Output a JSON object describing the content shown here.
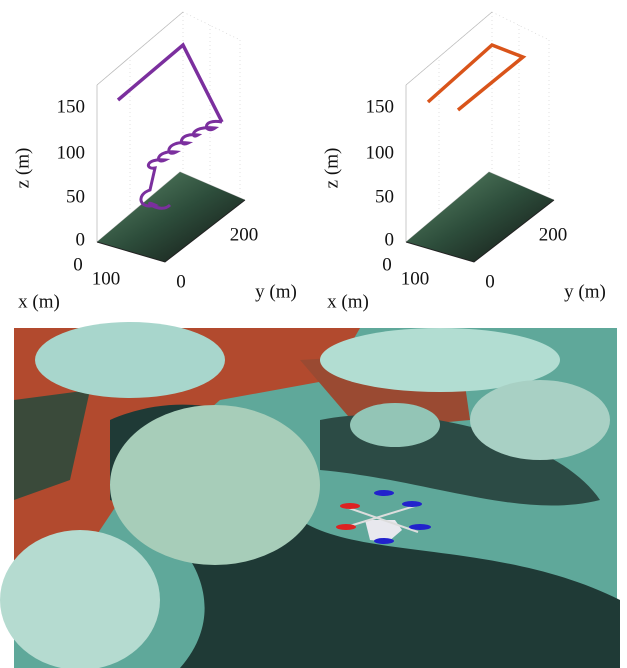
{
  "plots": [
    {
      "zlabel": "z (m)",
      "xlabel": "x (m)",
      "ylabel": "y (m)",
      "zticks": [
        "0",
        "50",
        "100",
        "150"
      ],
      "xticks": [
        "0",
        "100"
      ],
      "yticks": [
        "0",
        "200"
      ]
    },
    {
      "zlabel": "z (m)",
      "xlabel": "x (m)",
      "ylabel": "y (m)",
      "zticks": [
        "0",
        "50",
        "100",
        "150"
      ],
      "xticks": [
        "0",
        "100"
      ],
      "yticks": [
        "0",
        "200"
      ]
    }
  ]
}
